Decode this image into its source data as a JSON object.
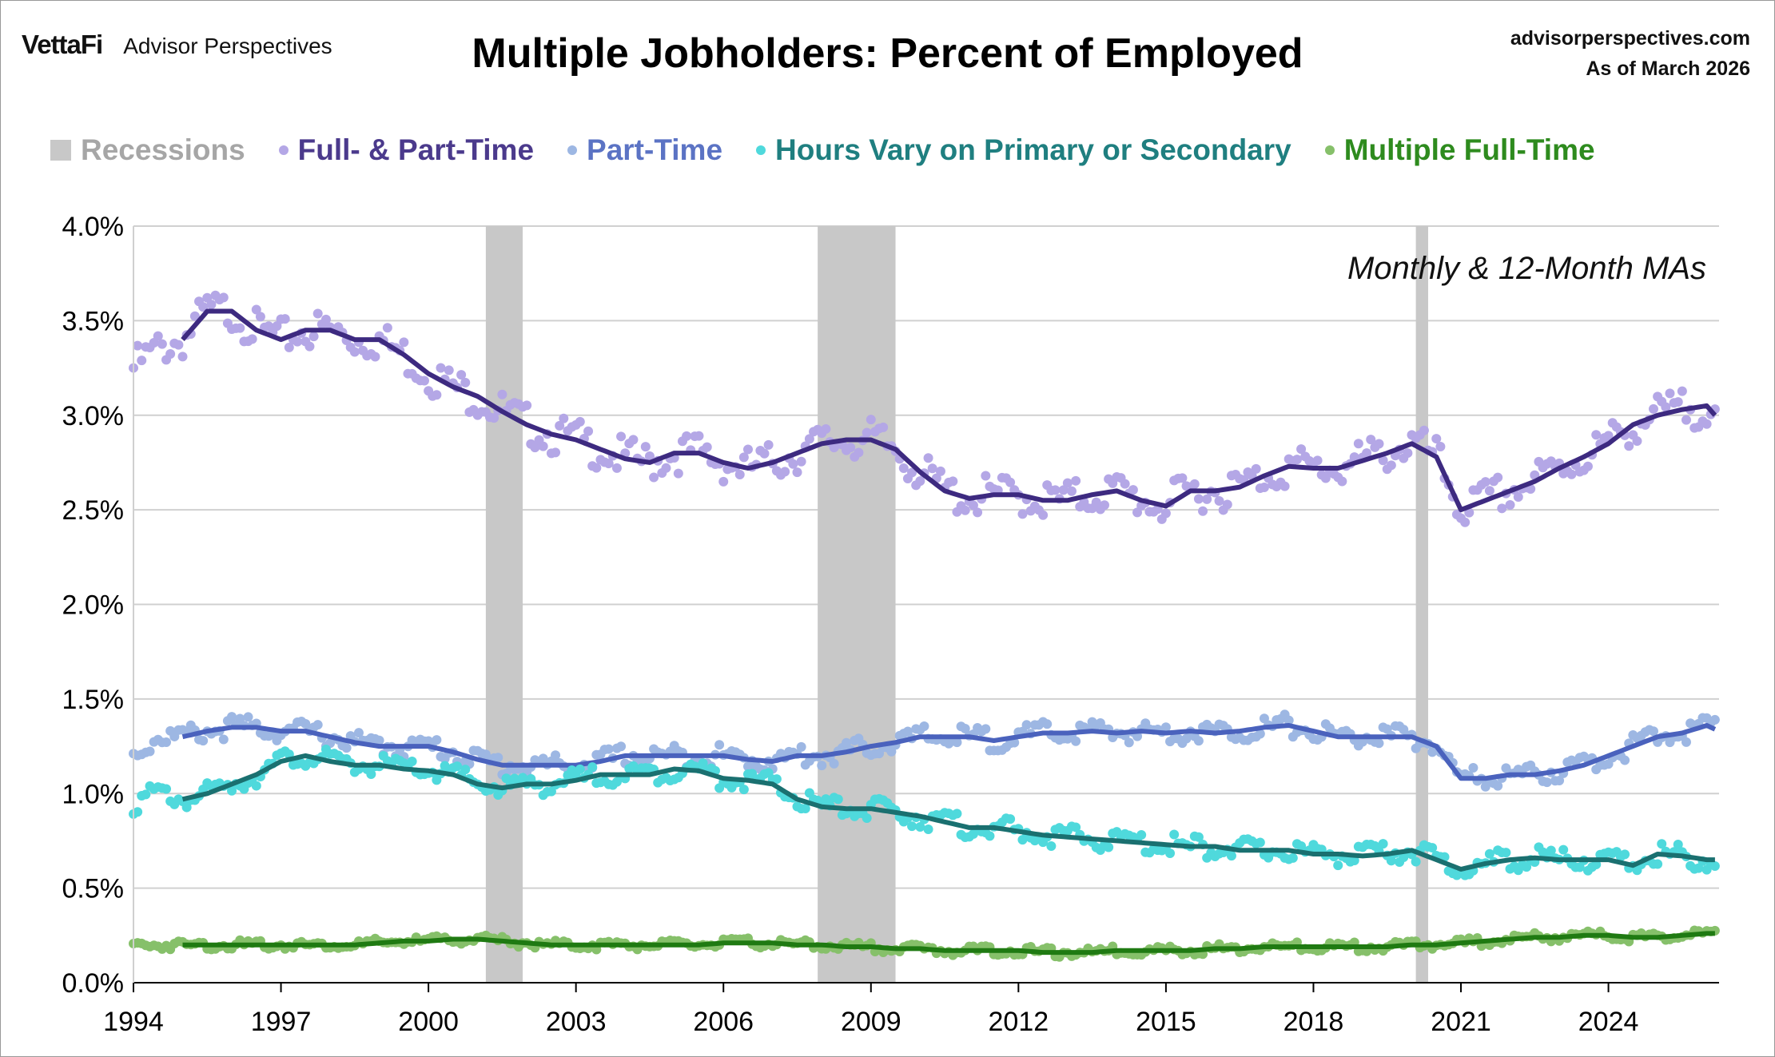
{
  "header": {
    "brand": "VettaFi",
    "brand_sub": "Advisor Perspectives",
    "title": "Multiple Jobholders: Percent of Employed",
    "source": "advisorperspectives.com",
    "as_of": "As of March 2026"
  },
  "legend": [
    {
      "label": "Recessions",
      "color": "#C8C8C8",
      "text_color": "#A6A6A6",
      "shape": "rect"
    },
    {
      "label": "Full- & Part-Time",
      "color": "#B4A7E6",
      "text_color": "#4B3A8C",
      "shape": "dot"
    },
    {
      "label": "Part-Time",
      "color": "#9DB7E3",
      "text_color": "#5B73C4",
      "shape": "dot"
    },
    {
      "label": "Hours Vary on Primary or Secondary",
      "color": "#4FD9DC",
      "text_color": "#1F7F80",
      "shape": "dot"
    },
    {
      "label": "Multiple Full-Time",
      "color": "#86C06A",
      "text_color": "#2E8B1E",
      "shape": "dot"
    }
  ],
  "chart_data": {
    "type": "scatter",
    "title": "Multiple Jobholders: Percent of Employed",
    "annotation": "Monthly & 12-Month MAs",
    "x_ticks": [
      "1994",
      "1997",
      "2000",
      "2003",
      "2006",
      "2009",
      "2012",
      "2015",
      "2018",
      "2021",
      "2024"
    ],
    "x_range": [
      "1994-01",
      "2026-03"
    ],
    "y_ticks": [
      "0.0%",
      "0.5%",
      "1.0%",
      "1.5%",
      "2.0%",
      "2.5%",
      "3.0%",
      "3.5%",
      "4.0%"
    ],
    "ylim": [
      0,
      4.0
    ],
    "grid": true,
    "recessions": [
      {
        "start": "2001-03",
        "end": "2001-11"
      },
      {
        "start": "2007-12",
        "end": "2009-06"
      },
      {
        "start": "2020-02",
        "end": "2020-04"
      }
    ],
    "series": [
      {
        "name": "Full- & Part-Time",
        "dot_color": "#B4A7E6",
        "ma_color": "#3D2A80",
        "ma_start": "1995-01",
        "values": [
          [
            "1994-01",
            3.25
          ],
          [
            "1994-07",
            3.35
          ],
          [
            "1995-01",
            3.4
          ],
          [
            "1995-07",
            3.55
          ],
          [
            "1996-01",
            3.55
          ],
          [
            "1996-07",
            3.45
          ],
          [
            "1997-01",
            3.4
          ],
          [
            "1997-07",
            3.45
          ],
          [
            "1998-01",
            3.45
          ],
          [
            "1998-07",
            3.4
          ],
          [
            "1999-01",
            3.4
          ],
          [
            "1999-07",
            3.32
          ],
          [
            "2000-01",
            3.22
          ],
          [
            "2000-07",
            3.15
          ],
          [
            "2001-01",
            3.1
          ],
          [
            "2001-07",
            3.02
          ],
          [
            "2002-01",
            2.95
          ],
          [
            "2002-07",
            2.9
          ],
          [
            "2003-01",
            2.87
          ],
          [
            "2003-07",
            2.82
          ],
          [
            "2004-01",
            2.77
          ],
          [
            "2004-07",
            2.75
          ],
          [
            "2005-01",
            2.8
          ],
          [
            "2005-07",
            2.8
          ],
          [
            "2006-01",
            2.75
          ],
          [
            "2006-07",
            2.72
          ],
          [
            "2007-01",
            2.75
          ],
          [
            "2007-07",
            2.8
          ],
          [
            "2008-01",
            2.85
          ],
          [
            "2008-07",
            2.87
          ],
          [
            "2009-01",
            2.87
          ],
          [
            "2009-07",
            2.82
          ],
          [
            "2010-01",
            2.7
          ],
          [
            "2010-07",
            2.6
          ],
          [
            "2011-01",
            2.56
          ],
          [
            "2011-07",
            2.58
          ],
          [
            "2012-01",
            2.58
          ],
          [
            "2012-07",
            2.55
          ],
          [
            "2013-01",
            2.55
          ],
          [
            "2013-07",
            2.58
          ],
          [
            "2014-01",
            2.6
          ],
          [
            "2014-07",
            2.55
          ],
          [
            "2015-01",
            2.52
          ],
          [
            "2015-07",
            2.6
          ],
          [
            "2016-01",
            2.6
          ],
          [
            "2016-07",
            2.62
          ],
          [
            "2017-01",
            2.68
          ],
          [
            "2017-07",
            2.73
          ],
          [
            "2018-01",
            2.72
          ],
          [
            "2018-07",
            2.72
          ],
          [
            "2019-01",
            2.76
          ],
          [
            "2019-07",
            2.8
          ],
          [
            "2020-01",
            2.85
          ],
          [
            "2020-07",
            2.78
          ],
          [
            "2021-01",
            2.5
          ],
          [
            "2021-07",
            2.55
          ],
          [
            "2022-01",
            2.6
          ],
          [
            "2022-07",
            2.65
          ],
          [
            "2023-01",
            2.72
          ],
          [
            "2023-07",
            2.78
          ],
          [
            "2024-01",
            2.85
          ],
          [
            "2024-07",
            2.95
          ],
          [
            "2025-01",
            3.0
          ],
          [
            "2025-07",
            3.03
          ],
          [
            "2026-01",
            3.05
          ],
          [
            "2026-03",
            3.0
          ]
        ]
      },
      {
        "name": "Part-Time",
        "dot_color": "#9DB7E3",
        "ma_color": "#4A62BD",
        "ma_start": "1995-01",
        "values": [
          [
            "1994-01",
            1.2
          ],
          [
            "1994-07",
            1.3
          ],
          [
            "1995-01",
            1.3
          ],
          [
            "1995-07",
            1.33
          ],
          [
            "1996-01",
            1.35
          ],
          [
            "1996-07",
            1.35
          ],
          [
            "1997-01",
            1.33
          ],
          [
            "1997-07",
            1.33
          ],
          [
            "1998-01",
            1.3
          ],
          [
            "1998-07",
            1.27
          ],
          [
            "1999-01",
            1.25
          ],
          [
            "1999-07",
            1.25
          ],
          [
            "2000-01",
            1.25
          ],
          [
            "2000-07",
            1.22
          ],
          [
            "2001-01",
            1.18
          ],
          [
            "2001-07",
            1.15
          ],
          [
            "2002-01",
            1.15
          ],
          [
            "2002-07",
            1.15
          ],
          [
            "2003-01",
            1.15
          ],
          [
            "2003-07",
            1.17
          ],
          [
            "2004-01",
            1.2
          ],
          [
            "2004-07",
            1.2
          ],
          [
            "2005-01",
            1.2
          ],
          [
            "2005-07",
            1.2
          ],
          [
            "2006-01",
            1.2
          ],
          [
            "2006-07",
            1.18
          ],
          [
            "2007-01",
            1.17
          ],
          [
            "2007-07",
            1.2
          ],
          [
            "2008-01",
            1.2
          ],
          [
            "2008-07",
            1.22
          ],
          [
            "2009-01",
            1.25
          ],
          [
            "2009-07",
            1.27
          ],
          [
            "2010-01",
            1.3
          ],
          [
            "2010-07",
            1.3
          ],
          [
            "2011-01",
            1.3
          ],
          [
            "2011-07",
            1.28
          ],
          [
            "2012-01",
            1.3
          ],
          [
            "2012-07",
            1.32
          ],
          [
            "2013-01",
            1.32
          ],
          [
            "2013-07",
            1.33
          ],
          [
            "2014-01",
            1.32
          ],
          [
            "2014-07",
            1.33
          ],
          [
            "2015-01",
            1.32
          ],
          [
            "2015-07",
            1.33
          ],
          [
            "2016-01",
            1.32
          ],
          [
            "2016-07",
            1.33
          ],
          [
            "2017-01",
            1.35
          ],
          [
            "2017-07",
            1.36
          ],
          [
            "2018-01",
            1.33
          ],
          [
            "2018-07",
            1.3
          ],
          [
            "2019-01",
            1.3
          ],
          [
            "2019-07",
            1.3
          ],
          [
            "2020-01",
            1.3
          ],
          [
            "2020-07",
            1.25
          ],
          [
            "2021-01",
            1.08
          ],
          [
            "2021-07",
            1.08
          ],
          [
            "2022-01",
            1.1
          ],
          [
            "2022-07",
            1.1
          ],
          [
            "2023-01",
            1.12
          ],
          [
            "2023-07",
            1.15
          ],
          [
            "2024-01",
            1.2
          ],
          [
            "2024-07",
            1.25
          ],
          [
            "2025-01",
            1.3
          ],
          [
            "2025-07",
            1.32
          ],
          [
            "2026-01",
            1.36
          ],
          [
            "2026-03",
            1.34
          ]
        ]
      },
      {
        "name": "Hours Vary on Primary or Secondary",
        "dot_color": "#4FD9DC",
        "ma_color": "#1A7070",
        "ma_start": "1995-01",
        "values": [
          [
            "1994-01",
            0.95
          ],
          [
            "1994-07",
            1.0
          ],
          [
            "1995-01",
            0.97
          ],
          [
            "1995-07",
            1.0
          ],
          [
            "1996-01",
            1.05
          ],
          [
            "1996-07",
            1.1
          ],
          [
            "1997-01",
            1.17
          ],
          [
            "1997-07",
            1.2
          ],
          [
            "1998-01",
            1.17
          ],
          [
            "1998-07",
            1.15
          ],
          [
            "1999-01",
            1.15
          ],
          [
            "1999-07",
            1.13
          ],
          [
            "2000-01",
            1.12
          ],
          [
            "2000-07",
            1.1
          ],
          [
            "2001-01",
            1.05
          ],
          [
            "2001-07",
            1.03
          ],
          [
            "2002-01",
            1.05
          ],
          [
            "2002-07",
            1.05
          ],
          [
            "2003-01",
            1.07
          ],
          [
            "2003-07",
            1.1
          ],
          [
            "2004-01",
            1.1
          ],
          [
            "2004-07",
            1.1
          ],
          [
            "2005-01",
            1.13
          ],
          [
            "2005-07",
            1.12
          ],
          [
            "2006-01",
            1.08
          ],
          [
            "2006-07",
            1.07
          ],
          [
            "2007-01",
            1.05
          ],
          [
            "2007-07",
            0.97
          ],
          [
            "2008-01",
            0.93
          ],
          [
            "2008-07",
            0.92
          ],
          [
            "2009-01",
            0.92
          ],
          [
            "2009-07",
            0.9
          ],
          [
            "2010-01",
            0.88
          ],
          [
            "2010-07",
            0.85
          ],
          [
            "2011-01",
            0.82
          ],
          [
            "2011-07",
            0.82
          ],
          [
            "2012-01",
            0.8
          ],
          [
            "2012-07",
            0.78
          ],
          [
            "2013-01",
            0.77
          ],
          [
            "2013-07",
            0.76
          ],
          [
            "2014-01",
            0.75
          ],
          [
            "2014-07",
            0.74
          ],
          [
            "2015-01",
            0.73
          ],
          [
            "2015-07",
            0.72
          ],
          [
            "2016-01",
            0.72
          ],
          [
            "2016-07",
            0.7
          ],
          [
            "2017-01",
            0.7
          ],
          [
            "2017-07",
            0.7
          ],
          [
            "2018-01",
            0.68
          ],
          [
            "2018-07",
            0.68
          ],
          [
            "2019-01",
            0.67
          ],
          [
            "2019-07",
            0.68
          ],
          [
            "2020-01",
            0.7
          ],
          [
            "2020-07",
            0.65
          ],
          [
            "2021-01",
            0.6
          ],
          [
            "2021-07",
            0.63
          ],
          [
            "2022-01",
            0.65
          ],
          [
            "2022-07",
            0.66
          ],
          [
            "2023-01",
            0.65
          ],
          [
            "2023-07",
            0.65
          ],
          [
            "2024-01",
            0.65
          ],
          [
            "2024-07",
            0.62
          ],
          [
            "2025-01",
            0.68
          ],
          [
            "2025-07",
            0.67
          ],
          [
            "2026-01",
            0.65
          ],
          [
            "2026-03",
            0.65
          ]
        ]
      },
      {
        "name": "Multiple Full-Time",
        "dot_color": "#86C06A",
        "ma_color": "#1F7A12",
        "ma_start": "1995-01",
        "values": [
          [
            "1994-01",
            0.2
          ],
          [
            "1994-07",
            0.2
          ],
          [
            "1995-01",
            0.2
          ],
          [
            "1995-07",
            0.2
          ],
          [
            "1996-01",
            0.2
          ],
          [
            "1996-07",
            0.2
          ],
          [
            "1997-01",
            0.2
          ],
          [
            "1997-07",
            0.2
          ],
          [
            "1998-01",
            0.2
          ],
          [
            "1998-07",
            0.2
          ],
          [
            "1999-01",
            0.21
          ],
          [
            "1999-07",
            0.22
          ],
          [
            "2000-01",
            0.22
          ],
          [
            "2000-07",
            0.23
          ],
          [
            "2001-01",
            0.23
          ],
          [
            "2001-07",
            0.22
          ],
          [
            "2002-01",
            0.21
          ],
          [
            "2002-07",
            0.2
          ],
          [
            "2003-01",
            0.2
          ],
          [
            "2003-07",
            0.2
          ],
          [
            "2004-01",
            0.2
          ],
          [
            "2004-07",
            0.2
          ],
          [
            "2005-01",
            0.2
          ],
          [
            "2005-07",
            0.2
          ],
          [
            "2006-01",
            0.21
          ],
          [
            "2006-07",
            0.21
          ],
          [
            "2007-01",
            0.21
          ],
          [
            "2007-07",
            0.2
          ],
          [
            "2008-01",
            0.2
          ],
          [
            "2008-07",
            0.19
          ],
          [
            "2009-01",
            0.19
          ],
          [
            "2009-07",
            0.18
          ],
          [
            "2010-01",
            0.18
          ],
          [
            "2010-07",
            0.17
          ],
          [
            "2011-01",
            0.17
          ],
          [
            "2011-07",
            0.17
          ],
          [
            "2012-01",
            0.17
          ],
          [
            "2012-07",
            0.16
          ],
          [
            "2013-01",
            0.16
          ],
          [
            "2013-07",
            0.16
          ],
          [
            "2014-01",
            0.17
          ],
          [
            "2014-07",
            0.17
          ],
          [
            "2015-01",
            0.17
          ],
          [
            "2015-07",
            0.17
          ],
          [
            "2016-01",
            0.18
          ],
          [
            "2016-07",
            0.18
          ],
          [
            "2017-01",
            0.19
          ],
          [
            "2017-07",
            0.19
          ],
          [
            "2018-01",
            0.19
          ],
          [
            "2018-07",
            0.19
          ],
          [
            "2019-01",
            0.19
          ],
          [
            "2019-07",
            0.19
          ],
          [
            "2020-01",
            0.2
          ],
          [
            "2020-07",
            0.2
          ],
          [
            "2021-01",
            0.21
          ],
          [
            "2021-07",
            0.22
          ],
          [
            "2022-01",
            0.23
          ],
          [
            "2022-07",
            0.24
          ],
          [
            "2023-01",
            0.24
          ],
          [
            "2023-07",
            0.25
          ],
          [
            "2024-01",
            0.25
          ],
          [
            "2024-07",
            0.24
          ],
          [
            "2025-01",
            0.24
          ],
          [
            "2025-07",
            0.25
          ],
          [
            "2026-01",
            0.26
          ],
          [
            "2026-03",
            0.26
          ]
        ]
      }
    ]
  }
}
